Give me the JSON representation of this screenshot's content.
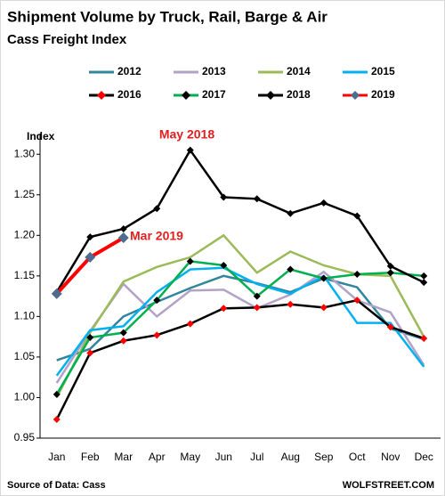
{
  "chart_data": {
    "type": "line",
    "title": "Shipment Volume by Truck, Rail, Barge & Air",
    "subtitle": "Cass Freight Index",
    "y_label": "Index",
    "source": "Source of Data: Cass",
    "credit": "WOLFSTREET.COM",
    "annotations": [
      "May 2018",
      "Mar 2019"
    ],
    "categories": [
      "Jan",
      "Feb",
      "Mar",
      "Apr",
      "May",
      "Jun",
      "Jul",
      "Aug",
      "Sep",
      "Oct",
      "Nov",
      "Dec"
    ],
    "ylim": [
      0.95,
      1.32
    ],
    "yticks": [
      0.95,
      {
        "value": 1,
        "label": "1.00"
      },
      1.05,
      {
        "value": 1.1,
        "label": "1.10"
      },
      1.15,
      {
        "value": 1.2,
        "label": "1.20"
      },
      1.25,
      {
        "value": 1.3,
        "label": "1.30"
      }
    ],
    "series": [
      {
        "name": "2012",
        "color": "#31859c",
        "values": [
          1.046,
          1.06,
          1.1,
          1.118,
          1.135,
          1.15,
          1.141,
          1.13,
          1.147,
          1.136,
          1.085,
          1.072
        ]
      },
      {
        "name": "2013",
        "color": "#b3a2c7",
        "values": [
          1.018,
          1.082,
          1.14,
          1.1,
          1.132,
          1.133,
          1.11,
          1.127,
          1.155,
          1.12,
          1.105,
          1.04
        ]
      },
      {
        "name": "2014",
        "color": "#9bbb59",
        "values": [
          1.0,
          1.08,
          1.143,
          1.161,
          1.173,
          1.2,
          1.154,
          1.18,
          1.163,
          1.152,
          1.15,
          1.075
        ]
      },
      {
        "name": "2015",
        "color": "#00b0f0",
        "values": [
          1.027,
          1.083,
          1.088,
          1.13,
          1.158,
          1.16,
          1.14,
          1.128,
          1.15,
          1.092,
          1.092,
          1.038
        ]
      },
      {
        "name": "2016",
        "color": "#000000",
        "marker_color": "#ff0000",
        "values": [
          0.973,
          1.055,
          1.07,
          1.077,
          1.091,
          1.11,
          1.111,
          1.115,
          1.111,
          1.12,
          1.087,
          1.073
        ]
      },
      {
        "name": "2017",
        "color": "#00b050",
        "marker_color": "#000000",
        "values": [
          1.004,
          1.074,
          1.08,
          1.12,
          1.168,
          1.163,
          1.125,
          1.158,
          1.147,
          1.152,
          1.154,
          1.15
        ]
      },
      {
        "name": "2018",
        "color": "#000000",
        "marker_color": "#000000",
        "values": [
          1.13,
          1.198,
          1.208,
          1.233,
          1.305,
          1.247,
          1.245,
          1.227,
          1.24,
          1.224,
          1.162,
          1.142
        ]
      },
      {
        "name": "2019",
        "color": "#ff0000",
        "marker_color": "#4f6b8f",
        "values": [
          1.128,
          1.173,
          1.197,
          null,
          null,
          null,
          null,
          null,
          null,
          null,
          null,
          null
        ]
      }
    ]
  }
}
